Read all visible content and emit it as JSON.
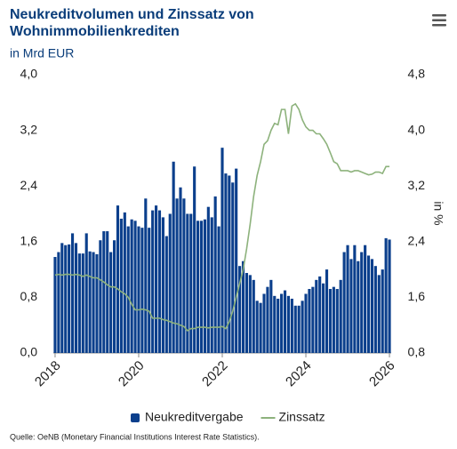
{
  "chart_data": {
    "type": "bar_line",
    "title": "Neukreditvolumen und Zinssatz von Wohnimmobilienkrediten",
    "subtitle": "in Mrd EUR",
    "y2_label": "in %",
    "source": "Quelle: OeNB (Monetary Financial Institutions Interest Rate Statistics).",
    "categories": [
      "2018",
      null,
      null,
      null,
      null,
      null,
      null,
      null,
      null,
      null,
      null,
      null,
      null,
      null,
      null,
      null,
      null,
      null,
      null,
      null,
      null,
      null,
      null,
      null,
      "2020",
      null,
      null,
      null,
      null,
      null,
      null,
      null,
      null,
      null,
      null,
      null,
      null,
      null,
      null,
      null,
      null,
      null,
      null,
      null,
      null,
      null,
      null,
      null,
      "2022",
      null,
      null,
      null,
      null,
      null,
      null,
      null,
      null,
      null,
      null,
      null,
      null,
      null,
      null,
      null,
      null,
      null,
      null,
      null,
      null,
      null,
      null,
      null,
      "2024",
      null,
      null,
      null,
      null,
      null,
      null,
      null,
      null,
      null,
      null,
      null,
      null,
      null,
      null,
      null,
      null,
      null,
      null,
      null,
      null,
      null,
      null,
      null,
      "2026"
    ],
    "series": [
      {
        "name": "Neukreditvergabe",
        "color": "#0b3f8c",
        "kind": "bar",
        "values": [
          1.38,
          1.45,
          1.58,
          1.55,
          1.56,
          1.72,
          1.58,
          1.43,
          1.43,
          1.72,
          1.46,
          1.45,
          1.42,
          1.62,
          1.75,
          1.75,
          1.45,
          1.62,
          2.12,
          1.93,
          2.02,
          1.82,
          1.92,
          1.9,
          1.82,
          1.8,
          2.22,
          1.8,
          2.05,
          2.12,
          2.05,
          1.95,
          1.68,
          2.0,
          2.75,
          2.22,
          2.38,
          2.22,
          2.0,
          2.0,
          2.68,
          1.9,
          1.9,
          1.92,
          2.1,
          1.95,
          2.25,
          1.82,
          2.95,
          2.58,
          2.55,
          2.45,
          2.65,
          1.25,
          1.32,
          1.15,
          1.12,
          1.05,
          0.75,
          0.72,
          0.85,
          0.95,
          1.05,
          0.82,
          0.78,
          0.85,
          0.9,
          0.82,
          0.78,
          0.68,
          0.68,
          0.75,
          0.85,
          0.92,
          0.95,
          1.05,
          1.1,
          1.0,
          1.2,
          0.92,
          0.95,
          0.92,
          1.05,
          1.45,
          1.55,
          1.35,
          1.55,
          1.32,
          1.45,
          1.55,
          1.4,
          1.35,
          1.25,
          1.12,
          1.2,
          1.65,
          1.63
        ]
      },
      {
        "name": "Zinssatz",
        "color": "#8db27c",
        "kind": "line",
        "axis": "y2",
        "values": [
          1.92,
          1.93,
          1.92,
          1.93,
          1.93,
          1.92,
          1.93,
          1.92,
          1.9,
          1.92,
          1.9,
          1.88,
          1.88,
          1.85,
          1.82,
          1.78,
          1.75,
          1.75,
          1.72,
          1.68,
          1.65,
          1.6,
          1.5,
          1.42,
          1.42,
          1.43,
          1.42,
          1.4,
          1.3,
          1.3,
          1.3,
          1.28,
          1.27,
          1.25,
          1.23,
          1.22,
          1.2,
          1.18,
          1.12,
          1.15,
          1.15,
          1.17,
          1.17,
          1.17,
          1.16,
          1.17,
          1.17,
          1.17,
          1.18,
          1.15,
          1.25,
          1.4,
          1.6,
          1.8,
          2.0,
          2.3,
          2.65,
          3.05,
          3.35,
          3.55,
          3.8,
          3.85,
          4.0,
          4.1,
          4.08,
          4.3,
          4.3,
          3.95,
          4.35,
          4.38,
          4.3,
          4.15,
          4.05,
          4.0,
          4.0,
          3.95,
          3.95,
          3.88,
          3.8,
          3.68,
          3.55,
          3.52,
          3.42,
          3.42,
          3.42,
          3.4,
          3.42,
          3.42,
          3.4,
          3.38,
          3.36,
          3.37,
          3.4,
          3.4,
          3.38,
          3.48,
          3.48
        ]
      }
    ],
    "ylim": [
      0,
      4
    ],
    "yticks": [
      {
        "value": 0,
        "label": "0,0"
      },
      {
        "value": 0.8,
        "label": "0,8"
      },
      {
        "value": 1.6,
        "label": "1,6"
      },
      {
        "value": 2.4,
        "label": "2,4"
      },
      {
        "value": 3.2,
        "label": "3,2"
      },
      {
        "value": 4,
        "label": "4,0"
      }
    ],
    "y2lim": [
      0.8,
      4.8
    ],
    "y2ticks": [
      {
        "value": 0.8,
        "label": "0,8"
      },
      {
        "value": 1.6,
        "label": "1,6"
      },
      {
        "value": 2.4,
        "label": "2,4"
      },
      {
        "value": 3.2,
        "label": "3,2"
      },
      {
        "value": 4,
        "label": "4,0"
      },
      {
        "value": 4.8,
        "label": "4,8"
      }
    ],
    "grid": false,
    "legend": "bottom"
  }
}
